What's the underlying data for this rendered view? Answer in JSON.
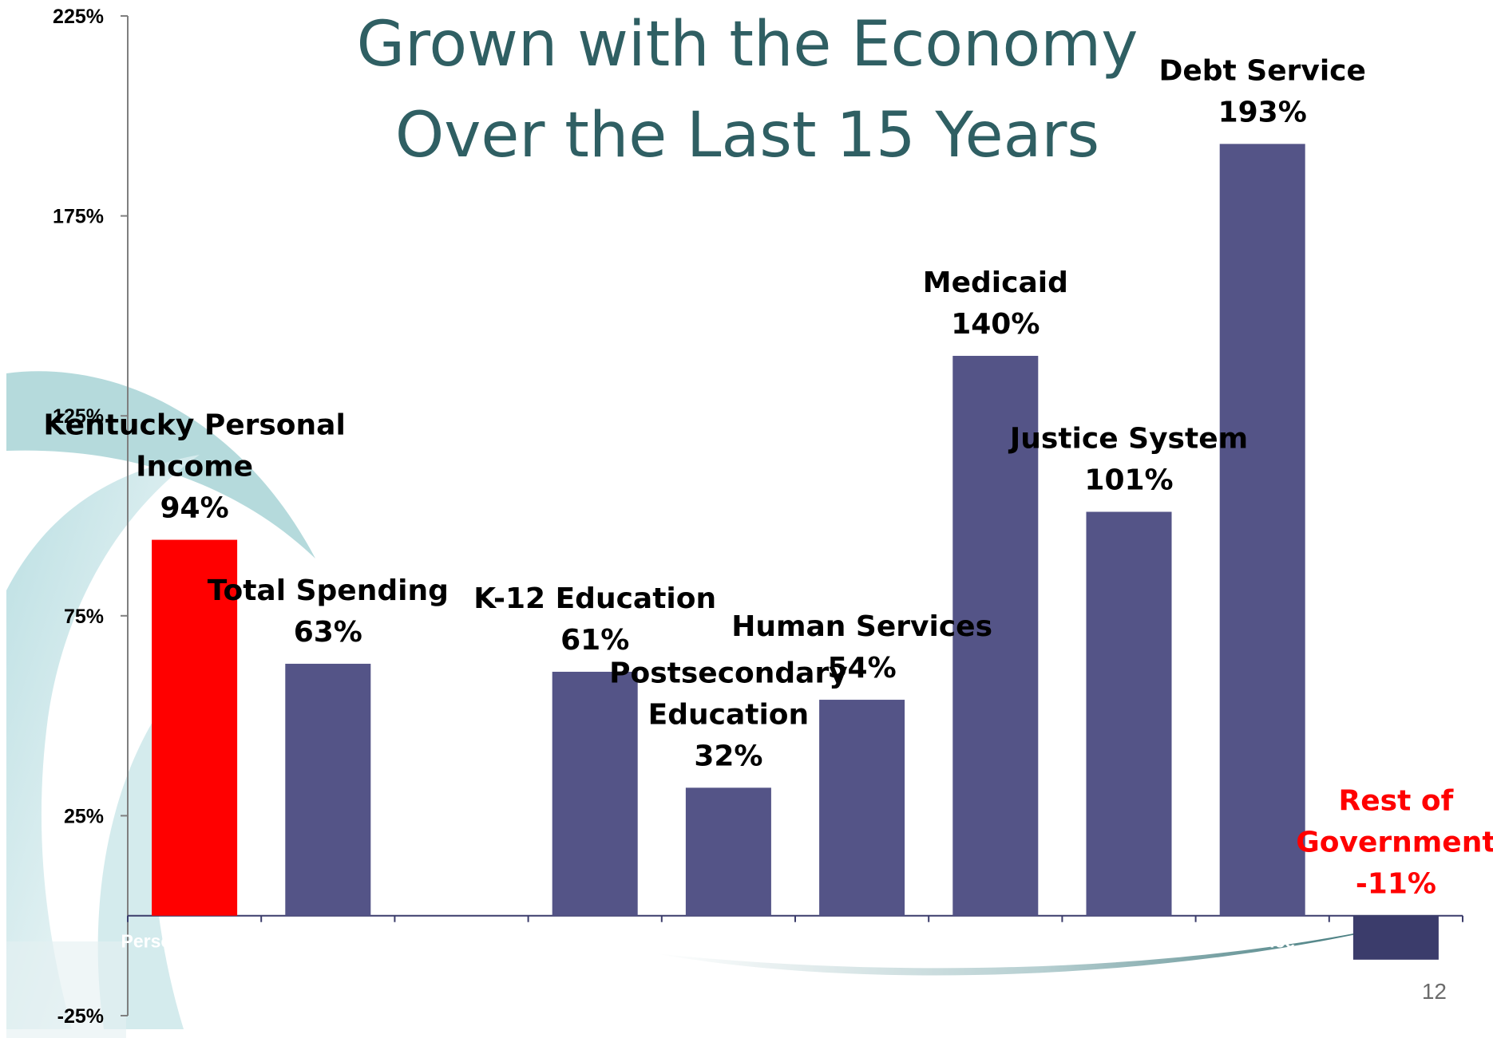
{
  "slide": {
    "title_lines": [
      "Grown with the Economy",
      "Over the Last 15 Years"
    ],
    "page_number": "12"
  },
  "colors": {
    "highlight_bar": "#ff0000",
    "standard_bar": "#545487",
    "negative_bar": "#3b3c6b",
    "highlight_text": "#ff0000",
    "standard_text": "#000000",
    "title_text": "#2f5f63"
  },
  "chart_data": {
    "type": "bar",
    "title": "Grown with the Economy Over the Last 15 Years",
    "ylim": [
      -25,
      225
    ],
    "yticks": [
      {
        "value": 225,
        "label": "225%"
      },
      {
        "value": 175,
        "label": "175%"
      },
      {
        "value": 125,
        "label": "125%"
      },
      {
        "value": 75,
        "label": "75%"
      },
      {
        "value": 25,
        "label": "25%"
      },
      {
        "value": -25,
        "label": "-25%"
      }
    ],
    "grid": false,
    "bars": [
      {
        "category": "Personal Income",
        "value": 94,
        "label_lines": [
          "Kentucky Personal",
          "Income",
          "94%"
        ],
        "color": "#ff0000",
        "label_color": "#000000"
      },
      {
        "category": "Total Spending",
        "value": 63,
        "label_lines": [
          "Total Spending",
          "63%"
        ],
        "color": "#545487",
        "label_color": "#000000"
      },
      {
        "category": "",
        "value": null,
        "label_lines": [],
        "color": "#545487",
        "label_color": "#000000"
      },
      {
        "category": "",
        "value": 61,
        "label_lines": [
          "K-12 Education",
          "61%"
        ],
        "color": "#545487",
        "label_color": "#000000"
      },
      {
        "category": "",
        "value": 32,
        "label_lines": [
          "Postsecondary",
          "Education",
          "32%"
        ],
        "color": "#545487",
        "label_color": "#000000"
      },
      {
        "category": "Services",
        "value": 54,
        "label_lines": [
          "Human Services",
          "54%"
        ],
        "color": "#545487",
        "label_color": "#000000"
      },
      {
        "category": "",
        "value": 140,
        "label_lines": [
          "Medicaid",
          "140%"
        ],
        "color": "#545487",
        "label_color": "#000000"
      },
      {
        "category": "",
        "value": 101,
        "label_lines": [
          "Justice System",
          "101%"
        ],
        "color": "#545487",
        "label_color": "#000000"
      },
      {
        "category": "Service",
        "value": 193,
        "label_lines": [
          "Debt Service",
          "193%"
        ],
        "color": "#545487",
        "label_color": "#000000"
      },
      {
        "category": "",
        "value": -11,
        "label_lines": [
          "Rest of",
          "Government",
          "-11%"
        ],
        "color": "#3b3c6b",
        "label_color": "#ff0000"
      }
    ]
  }
}
